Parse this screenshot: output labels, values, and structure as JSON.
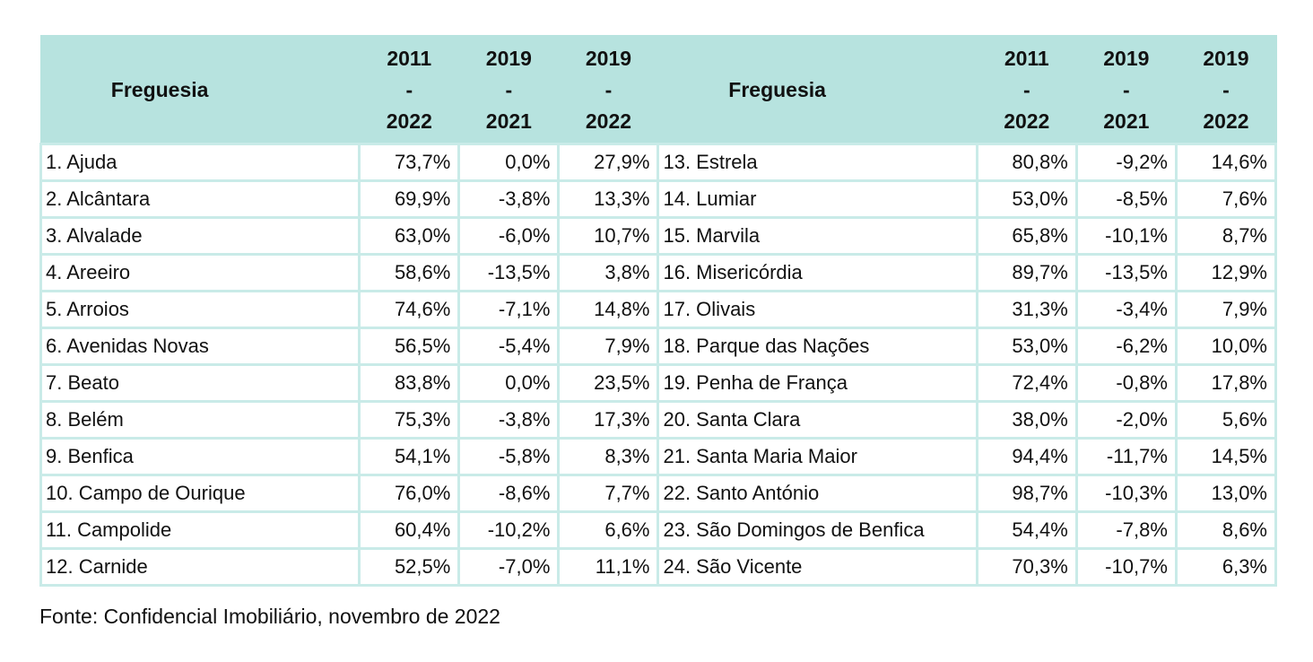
{
  "header": {
    "name_label": "Freguesia",
    "periods": [
      {
        "start": "2011",
        "sep": "-",
        "end": "2022"
      },
      {
        "start": "2019",
        "sep": "-",
        "end": "2021"
      },
      {
        "start": "2019",
        "sep": "-",
        "end": "2022"
      }
    ]
  },
  "rows_left": [
    {
      "name": "1. Ajuda",
      "v1": "73,7%",
      "v2": "0,0%",
      "v3": "27,9%"
    },
    {
      "name": "2. Alcântara",
      "v1": "69,9%",
      "v2": "-3,8%",
      "v3": "13,3%"
    },
    {
      "name": "3. Alvalade",
      "v1": "63,0%",
      "v2": "-6,0%",
      "v3": "10,7%"
    },
    {
      "name": "4. Areeiro",
      "v1": "58,6%",
      "v2": "-13,5%",
      "v3": "3,8%"
    },
    {
      "name": "5. Arroios",
      "v1": "74,6%",
      "v2": "-7,1%",
      "v3": "14,8%"
    },
    {
      "name": "6. Avenidas Novas",
      "v1": "56,5%",
      "v2": "-5,4%",
      "v3": "7,9%"
    },
    {
      "name": "7. Beato",
      "v1": "83,8%",
      "v2": "0,0%",
      "v3": "23,5%"
    },
    {
      "name": "8. Belém",
      "v1": "75,3%",
      "v2": "-3,8%",
      "v3": "17,3%"
    },
    {
      "name": "9. Benfica",
      "v1": "54,1%",
      "v2": "-5,8%",
      "v3": "8,3%"
    },
    {
      "name": "10. Campo de Ourique",
      "v1": "76,0%",
      "v2": "-8,6%",
      "v3": "7,7%"
    },
    {
      "name": "11. Campolide",
      "v1": "60,4%",
      "v2": "-10,2%",
      "v3": "6,6%"
    },
    {
      "name": "12. Carnide",
      "v1": "52,5%",
      "v2": "-7,0%",
      "v3": "11,1%"
    }
  ],
  "rows_right": [
    {
      "name": "13. Estrela",
      "v1": "80,8%",
      "v2": "-9,2%",
      "v3": "14,6%"
    },
    {
      "name": "14. Lumiar",
      "v1": "53,0%",
      "v2": "-8,5%",
      "v3": "7,6%"
    },
    {
      "name": "15. Marvila",
      "v1": "65,8%",
      "v2": "-10,1%",
      "v3": "8,7%"
    },
    {
      "name": "16. Misericórdia",
      "v1": "89,7%",
      "v2": "-13,5%",
      "v3": "12,9%"
    },
    {
      "name": "17. Olivais",
      "v1": "31,3%",
      "v2": "-3,4%",
      "v3": "7,9%"
    },
    {
      "name": "18. Parque das Nações",
      "v1": "53,0%",
      "v2": "-6,2%",
      "v3": "10,0%"
    },
    {
      "name": "19. Penha de França",
      "v1": "72,4%",
      "v2": "-0,8%",
      "v3": "17,8%"
    },
    {
      "name": "20. Santa Clara",
      "v1": "38,0%",
      "v2": "-2,0%",
      "v3": "5,6%"
    },
    {
      "name": "21. Santa Maria Maior",
      "v1": "94,4%",
      "v2": "-11,7%",
      "v3": "14,5%"
    },
    {
      "name": "22. Santo António",
      "v1": "98,7%",
      "v2": "-10,3%",
      "v3": "13,0%"
    },
    {
      "name": "23. São Domingos de Benfica",
      "v1": "54,4%",
      "v2": "-7,8%",
      "v3": "8,6%"
    },
    {
      "name": "24. São Vicente",
      "v1": "70,3%",
      "v2": "-10,7%",
      "v3": "6,3%"
    }
  ],
  "source": "Fonte: Confidencial Imobiliário, novembro de 2022",
  "colors": {
    "header_bg": "#b7e3df",
    "cell_border": "#c9ebe8"
  }
}
